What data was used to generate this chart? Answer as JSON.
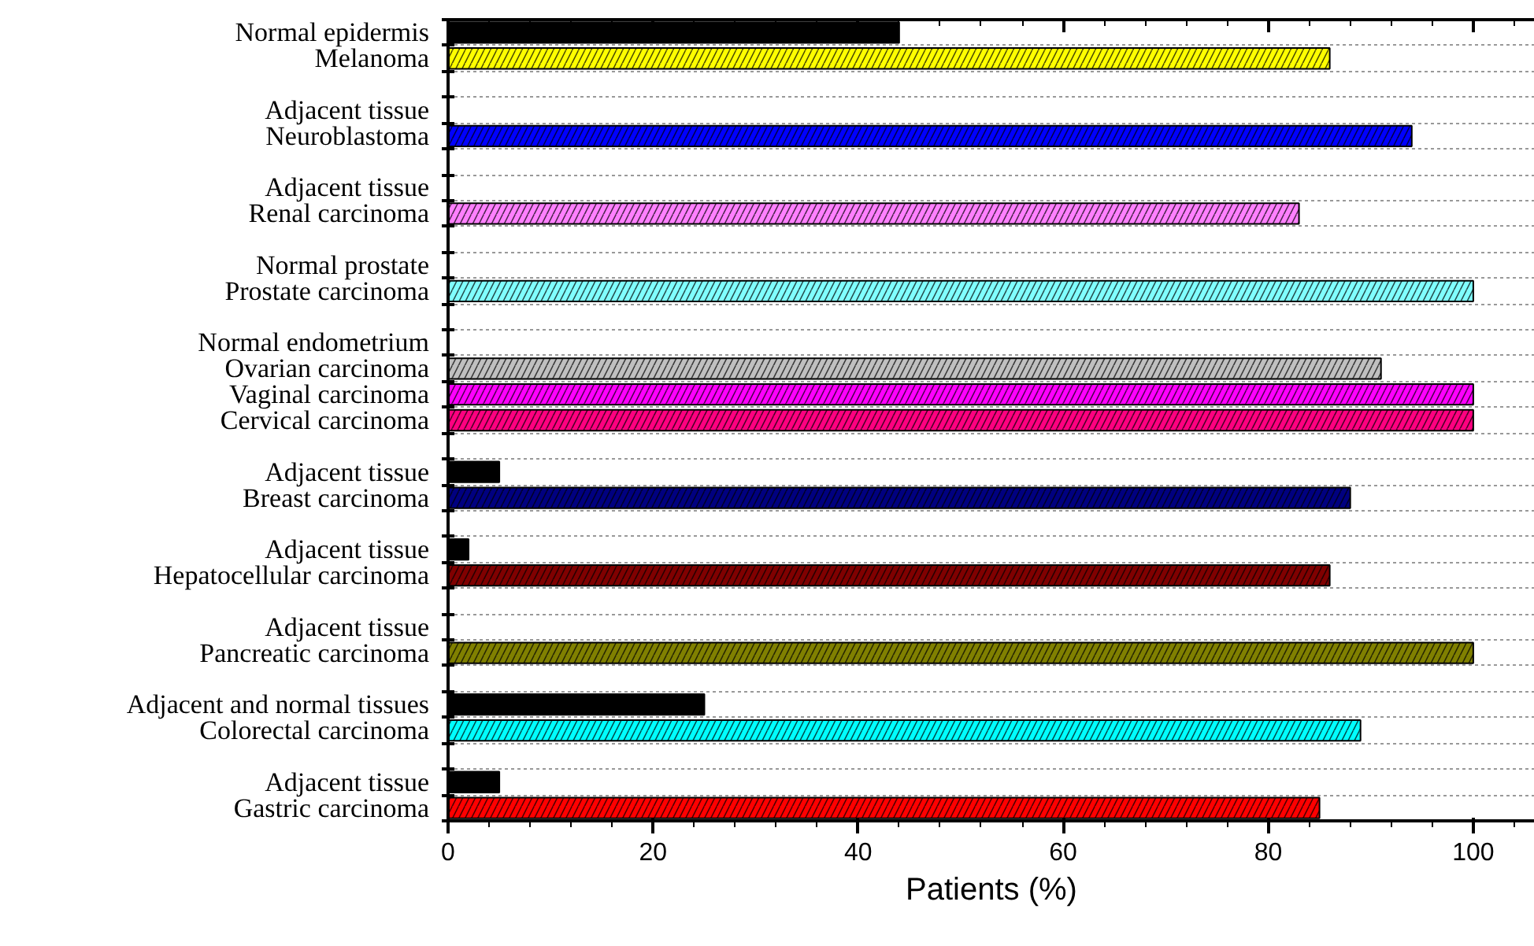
{
  "chart_data": {
    "type": "bar",
    "orientation": "horizontal",
    "xlabel": "Patients (%)",
    "categories": [
      "Normal epidermis",
      "Melanoma",
      null,
      "Adjacent tissue",
      "Neuroblastoma",
      null,
      "Adjacent tissue",
      "Renal carcinoma",
      null,
      "Normal prostate",
      "Prostate carcinoma",
      null,
      "Normal endometrium",
      "Ovarian carcinoma",
      "Vaginal carcinoma",
      "Cervical carcinoma",
      null,
      "Adjacent tissue",
      "Breast carcinoma",
      null,
      "Adjacent tissue",
      "Hepatocellular carcinoma",
      null,
      "Adjacent tissue",
      "Pancreatic carcinoma",
      null,
      "Adjacent and normal tissues",
      "Colorectal carcinoma",
      null,
      "Adjacent tissue",
      "Gastric carcinoma"
    ],
    "values": [
      44,
      86,
      null,
      0,
      94,
      null,
      0,
      83,
      null,
      0,
      100,
      null,
      0,
      91,
      100,
      100,
      null,
      5,
      88,
      null,
      2,
      86,
      null,
      0,
      100,
      null,
      25,
      89,
      null,
      5,
      85
    ],
    "colors": [
      "#000000",
      "#ffff00",
      null,
      "#000000",
      "#0000ff",
      null,
      "#000000",
      "#ff80ff",
      null,
      "#000000",
      "#80ffff",
      null,
      "#000000",
      "#c0c0c0",
      "#ff00ff",
      "#ff0080",
      null,
      "#000000",
      "#000080",
      null,
      "#000000",
      "#800000",
      null,
      "#000000",
      "#808000",
      null,
      "#000000",
      "#00ffff",
      null,
      "#000000",
      "#ff0000"
    ],
    "xlim": [
      0,
      106
    ],
    "xticks": [
      0,
      20,
      40,
      60,
      80,
      100
    ],
    "grid": "y"
  }
}
